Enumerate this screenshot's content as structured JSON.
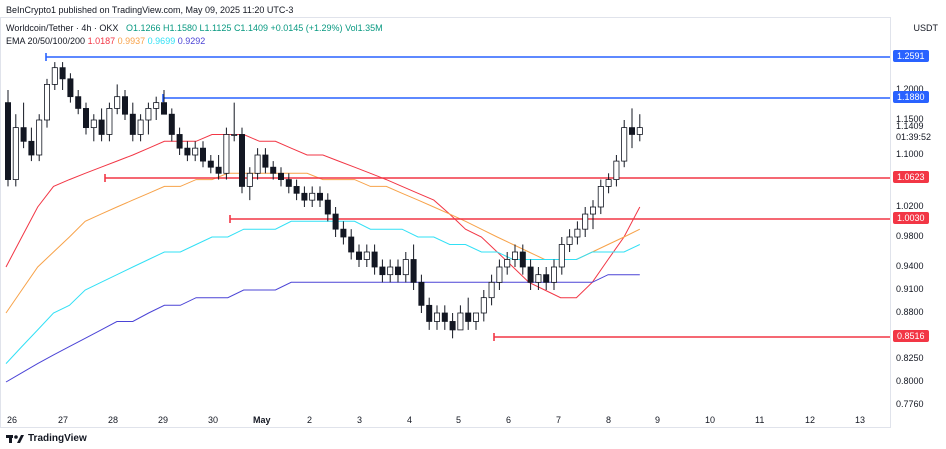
{
  "header": {
    "publisher_text": "BeInCrypto1 published on TradingView.com, May 09, 2025 11:20 UTC-3"
  },
  "symbol_info": {
    "pair": "Worldcoin/Tether",
    "timeframe": "4h",
    "exchange": "OKX",
    "open": "O1.1266",
    "high": "H1.1580",
    "low": "L1.1125",
    "close": "C1.1409",
    "change": "+0.0145 (+1.29%)",
    "volume": "Vol1.35M"
  },
  "ema_legend": {
    "label": "EMA 20/50/100/200",
    "values": [
      "1.0187",
      "0.9937",
      "0.9699",
      "0.9292"
    ],
    "colors": [
      "#f23645",
      "#f7a249",
      "#32e0f5",
      "#4b44d6"
    ]
  },
  "currency": "USDT",
  "footer": {
    "brand": "TradingView"
  },
  "colors": {
    "up": "#089981",
    "candle_up_fill": "#ffffff",
    "candle_down_fill": "#131722",
    "support": "#f23645",
    "resistance": "#2962ff"
  },
  "chart_data": {
    "type": "line",
    "title": "",
    "xlabel": "",
    "ylabel": "",
    "ylim": [
      0.75,
      1.29
    ],
    "x_ticks": [
      "26",
      "27",
      "28",
      "29",
      "30",
      "May",
      "2",
      "3",
      "4",
      "5",
      "6",
      "7",
      "8",
      "9",
      "10",
      "11",
      "12",
      "13"
    ],
    "y_ticks": [
      "1.2000",
      "1.1500",
      "1.1000",
      "1.0200",
      "0.9800",
      "0.9400",
      "0.9100",
      "0.8800",
      "0.8250",
      "0.8000",
      "0.7760"
    ],
    "levels": [
      {
        "label": "1.2591",
        "value": 1.2591,
        "color": "#2962ff"
      },
      {
        "label": "1.1880",
        "value": 1.188,
        "color": "#2962ff"
      },
      {
        "label": "1.0623",
        "value": 1.0623,
        "color": "#f23645"
      },
      {
        "label": "1.0030",
        "value": 1.003,
        "color": "#f23645"
      },
      {
        "label": "0.8516",
        "value": 0.8516,
        "color": "#f23645"
      }
    ],
    "current_price": {
      "value": "1.1409",
      "countdown": "01:39:52"
    },
    "candles": [
      [
        1.18,
        1.2,
        1.05,
        1.06
      ],
      [
        1.06,
        1.16,
        1.05,
        1.14
      ],
      [
        1.14,
        1.18,
        1.11,
        1.12
      ],
      [
        1.12,
        1.14,
        1.09,
        1.1
      ],
      [
        1.1,
        1.16,
        1.09,
        1.15
      ],
      [
        1.15,
        1.22,
        1.14,
        1.21
      ],
      [
        1.21,
        1.25,
        1.2,
        1.24
      ],
      [
        1.24,
        1.25,
        1.2,
        1.22
      ],
      [
        1.22,
        1.23,
        1.18,
        1.19
      ],
      [
        1.19,
        1.2,
        1.16,
        1.17
      ],
      [
        1.17,
        1.18,
        1.13,
        1.14
      ],
      [
        1.14,
        1.16,
        1.12,
        1.15
      ],
      [
        1.15,
        1.17,
        1.12,
        1.13
      ],
      [
        1.13,
        1.18,
        1.12,
        1.17
      ],
      [
        1.17,
        1.21,
        1.16,
        1.19
      ],
      [
        1.19,
        1.2,
        1.15,
        1.16
      ],
      [
        1.16,
        1.18,
        1.12,
        1.13
      ],
      [
        1.13,
        1.16,
        1.12,
        1.15
      ],
      [
        1.15,
        1.18,
        1.13,
        1.17
      ],
      [
        1.17,
        1.19,
        1.15,
        1.18
      ],
      [
        1.18,
        1.2,
        1.16,
        1.16
      ],
      [
        1.16,
        1.17,
        1.12,
        1.13
      ],
      [
        1.13,
        1.14,
        1.1,
        1.11
      ],
      [
        1.11,
        1.12,
        1.09,
        1.1
      ],
      [
        1.1,
        1.12,
        1.09,
        1.11
      ],
      [
        1.11,
        1.12,
        1.08,
        1.09
      ],
      [
        1.09,
        1.1,
        1.07,
        1.08
      ],
      [
        1.08,
        1.1,
        1.06,
        1.07
      ],
      [
        1.07,
        1.14,
        1.06,
        1.13
      ],
      [
        1.13,
        1.18,
        1.12,
        1.13
      ],
      [
        1.13,
        1.14,
        1.04,
        1.05
      ],
      [
        1.05,
        1.08,
        1.03,
        1.07
      ],
      [
        1.07,
        1.11,
        1.06,
        1.1
      ],
      [
        1.1,
        1.11,
        1.07,
        1.08
      ],
      [
        1.08,
        1.09,
        1.06,
        1.07
      ],
      [
        1.07,
        1.08,
        1.05,
        1.06
      ],
      [
        1.06,
        1.07,
        1.04,
        1.05
      ],
      [
        1.05,
        1.06,
        1.03,
        1.04
      ],
      [
        1.04,
        1.05,
        1.02,
        1.03
      ],
      [
        1.03,
        1.05,
        1.02,
        1.04
      ],
      [
        1.04,
        1.05,
        1.02,
        1.03
      ],
      [
        1.03,
        1.04,
        1.0,
        1.01
      ],
      [
        1.01,
        1.02,
        0.98,
        0.99
      ],
      [
        0.99,
        1.0,
        0.97,
        0.98
      ],
      [
        0.98,
        0.99,
        0.95,
        0.96
      ],
      [
        0.96,
        0.97,
        0.94,
        0.95
      ],
      [
        0.95,
        0.97,
        0.94,
        0.96
      ],
      [
        0.96,
        0.97,
        0.93,
        0.94
      ],
      [
        0.94,
        0.95,
        0.92,
        0.93
      ],
      [
        0.93,
        0.95,
        0.92,
        0.94
      ],
      [
        0.94,
        0.95,
        0.92,
        0.93
      ],
      [
        0.93,
        0.96,
        0.92,
        0.95
      ],
      [
        0.95,
        0.97,
        0.91,
        0.92
      ],
      [
        0.92,
        0.93,
        0.88,
        0.89
      ],
      [
        0.89,
        0.9,
        0.86,
        0.87
      ],
      [
        0.87,
        0.89,
        0.86,
        0.88
      ],
      [
        0.88,
        0.89,
        0.86,
        0.87
      ],
      [
        0.87,
        0.88,
        0.85,
        0.86
      ],
      [
        0.86,
        0.89,
        0.86,
        0.88
      ],
      [
        0.88,
        0.9,
        0.86,
        0.87
      ],
      [
        0.87,
        0.88,
        0.86,
        0.88
      ],
      [
        0.88,
        0.91,
        0.87,
        0.9
      ],
      [
        0.9,
        0.93,
        0.89,
        0.92
      ],
      [
        0.92,
        0.95,
        0.91,
        0.94
      ],
      [
        0.94,
        0.96,
        0.93,
        0.95
      ],
      [
        0.95,
        0.97,
        0.94,
        0.96
      ],
      [
        0.96,
        0.97,
        0.93,
        0.94
      ],
      [
        0.94,
        0.95,
        0.91,
        0.92
      ],
      [
        0.92,
        0.94,
        0.91,
        0.93
      ],
      [
        0.93,
        0.94,
        0.91,
        0.92
      ],
      [
        0.92,
        0.95,
        0.91,
        0.94
      ],
      [
        0.94,
        0.98,
        0.93,
        0.97
      ],
      [
        0.97,
        0.99,
        0.96,
        0.98
      ],
      [
        0.98,
        1.0,
        0.97,
        0.99
      ],
      [
        0.99,
        1.02,
        0.98,
        1.01
      ],
      [
        1.01,
        1.03,
        0.99,
        1.02
      ],
      [
        1.02,
        1.06,
        1.01,
        1.05
      ],
      [
        1.05,
        1.07,
        1.04,
        1.06
      ],
      [
        1.06,
        1.1,
        1.05,
        1.09
      ],
      [
        1.09,
        1.15,
        1.08,
        1.14
      ],
      [
        1.14,
        1.17,
        1.11,
        1.13
      ],
      [
        1.13,
        1.16,
        1.12,
        1.14
      ]
    ],
    "series": [
      {
        "name": "EMA 20",
        "color": "#f23645",
        "values": [
          0.94,
          0.98,
          1.02,
          1.05,
          1.06,
          1.07,
          1.08,
          1.09,
          1.1,
          1.11,
          1.12,
          1.12,
          1.12,
          1.13,
          1.13,
          1.13,
          1.12,
          1.12,
          1.11,
          1.1,
          1.1,
          1.09,
          1.08,
          1.07,
          1.06,
          1.05,
          1.04,
          1.03,
          1.01,
          0.99,
          0.98,
          0.96,
          0.94,
          0.92,
          0.91,
          0.9,
          0.9,
          0.92,
          0.95,
          0.98,
          1.02
        ]
      },
      {
        "name": "EMA 50",
        "color": "#f7a249",
        "values": [
          0.88,
          0.91,
          0.94,
          0.96,
          0.98,
          1.0,
          1.01,
          1.02,
          1.03,
          1.04,
          1.05,
          1.05,
          1.06,
          1.06,
          1.07,
          1.07,
          1.07,
          1.07,
          1.07,
          1.07,
          1.06,
          1.06,
          1.06,
          1.05,
          1.05,
          1.04,
          1.03,
          1.02,
          1.01,
          1.0,
          0.99,
          0.98,
          0.97,
          0.96,
          0.95,
          0.95,
          0.95,
          0.96,
          0.97,
          0.98,
          0.99
        ]
      },
      {
        "name": "EMA 100",
        "color": "#32e0f5",
        "values": [
          0.82,
          0.84,
          0.86,
          0.88,
          0.89,
          0.91,
          0.92,
          0.93,
          0.94,
          0.95,
          0.96,
          0.96,
          0.97,
          0.98,
          0.98,
          0.99,
          0.99,
          0.99,
          1.0,
          1.0,
          1.0,
          1.0,
          1.0,
          0.99,
          0.99,
          0.99,
          0.98,
          0.98,
          0.97,
          0.97,
          0.96,
          0.96,
          0.95,
          0.95,
          0.95,
          0.95,
          0.95,
          0.96,
          0.96,
          0.96,
          0.97
        ]
      },
      {
        "name": "EMA 200",
        "color": "#4b44d6",
        "values": [
          0.8,
          0.81,
          0.82,
          0.83,
          0.84,
          0.85,
          0.86,
          0.87,
          0.87,
          0.88,
          0.89,
          0.89,
          0.9,
          0.9,
          0.9,
          0.91,
          0.91,
          0.91,
          0.92,
          0.92,
          0.92,
          0.92,
          0.92,
          0.92,
          0.92,
          0.92,
          0.92,
          0.92,
          0.92,
          0.92,
          0.92,
          0.92,
          0.92,
          0.92,
          0.92,
          0.92,
          0.92,
          0.92,
          0.93,
          0.93,
          0.93
        ]
      }
    ]
  }
}
